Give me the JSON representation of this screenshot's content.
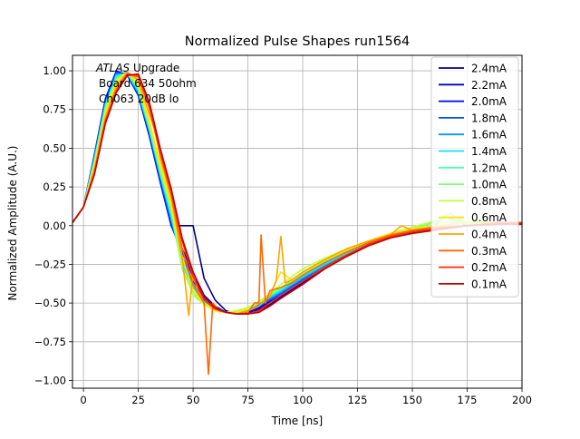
{
  "chart_data": {
    "type": "line",
    "title": "Normalized Pulse Shapes run1564",
    "xlabel": "Time [ns]",
    "ylabel": "Normalized Amplitude (A.U.)",
    "xlim": [
      -5,
      200
    ],
    "ylim": [
      -1.05,
      1.1
    ],
    "xticks": [
      0,
      25,
      50,
      75,
      100,
      125,
      150,
      175,
      200
    ],
    "yticks": [
      -1.0,
      -0.75,
      -0.5,
      -0.25,
      0.0,
      0.25,
      0.5,
      0.75,
      1.0
    ],
    "xtick_labels": [
      "0",
      "25",
      "50",
      "75",
      "100",
      "125",
      "150",
      "175",
      "200"
    ],
    "ytick_labels": [
      "−1.00",
      "−0.75",
      "−0.50",
      "−0.25",
      "0.00",
      "0.25",
      "0.50",
      "0.75",
      "1.00"
    ],
    "grid": true,
    "legend_position": "upper-right",
    "annotation": {
      "line1_italic": "ATLAS",
      "line1_rest": " Upgrade",
      "line2": "Board 634 50ohm",
      "line3": "Ch063 20dB lo"
    },
    "series": [
      {
        "name": "2.4mA",
        "color": "#00007f",
        "x": [
          -5,
          0,
          5,
          10,
          15,
          20,
          25,
          30,
          35,
          38,
          40,
          45,
          50,
          55,
          60,
          65,
          70,
          75,
          80,
          90,
          100,
          110,
          120,
          130,
          140,
          150,
          160,
          175,
          190,
          200
        ],
        "y": [
          0.02,
          0.12,
          0.42,
          0.75,
          0.97,
          0.99,
          0.88,
          0.64,
          0.33,
          0.12,
          0.0,
          0.0,
          0.0,
          -0.34,
          -0.48,
          -0.55,
          -0.57,
          -0.57,
          -0.55,
          -0.47,
          -0.37,
          -0.27,
          -0.18,
          -0.11,
          -0.07,
          -0.04,
          -0.02,
          0.0,
          0.02,
          0.02
        ]
      },
      {
        "name": "2.2mA",
        "color": "#0000c4",
        "x": [
          -5,
          0,
          5,
          10,
          15,
          20,
          25,
          30,
          35,
          40,
          45,
          50,
          55,
          60,
          65,
          70,
          75,
          80,
          90,
          100,
          110,
          120,
          130,
          140,
          150,
          160,
          175,
          190,
          200
        ],
        "y": [
          0.02,
          0.12,
          0.45,
          0.8,
          0.99,
          0.98,
          0.86,
          0.6,
          0.3,
          0.02,
          -0.15,
          -0.3,
          -0.45,
          -0.52,
          -0.56,
          -0.57,
          -0.57,
          -0.54,
          -0.46,
          -0.37,
          -0.27,
          -0.19,
          -0.12,
          -0.07,
          -0.04,
          -0.02,
          0.0,
          0.02,
          0.02
        ]
      },
      {
        "name": "2.0mA",
        "color": "#0000ff",
        "x": [
          -5,
          0,
          5,
          10,
          15,
          20,
          25,
          30,
          35,
          40,
          45,
          50,
          55,
          60,
          65,
          70,
          75,
          80,
          90,
          100,
          110,
          120,
          130,
          140,
          150,
          160,
          175,
          190,
          200
        ],
        "y": [
          0.02,
          0.12,
          0.46,
          0.82,
          1.0,
          0.97,
          0.84,
          0.58,
          0.28,
          0.0,
          -0.17,
          -0.33,
          -0.46,
          -0.53,
          -0.56,
          -0.57,
          -0.56,
          -0.53,
          -0.45,
          -0.36,
          -0.27,
          -0.19,
          -0.12,
          -0.07,
          -0.04,
          -0.02,
          0.0,
          0.02,
          0.02
        ]
      },
      {
        "name": "1.8mA",
        "color": "#0050ff",
        "x": [
          -5,
          0,
          5,
          10,
          15,
          20,
          25,
          30,
          35,
          40,
          45,
          50,
          55,
          60,
          65,
          70,
          75,
          80,
          90,
          100,
          110,
          120,
          130,
          140,
          150,
          160,
          175,
          190,
          200
        ],
        "y": [
          0.02,
          0.12,
          0.45,
          0.8,
          0.99,
          0.97,
          0.85,
          0.6,
          0.3,
          0.02,
          -0.2,
          -0.36,
          -0.47,
          -0.53,
          -0.56,
          -0.56,
          -0.55,
          -0.52,
          -0.44,
          -0.35,
          -0.26,
          -0.18,
          -0.12,
          -0.07,
          -0.04,
          -0.02,
          0.0,
          0.02,
          0.02
        ]
      },
      {
        "name": "1.6mA",
        "color": "#009cff",
        "x": [
          -5,
          0,
          5,
          10,
          15,
          20,
          25,
          30,
          35,
          40,
          45,
          50,
          55,
          60,
          65,
          70,
          75,
          80,
          90,
          100,
          110,
          120,
          130,
          140,
          150,
          160,
          175,
          190,
          200
        ],
        "y": [
          0.02,
          0.12,
          0.44,
          0.79,
          0.98,
          0.98,
          0.86,
          0.61,
          0.32,
          0.04,
          -0.22,
          -0.38,
          -0.48,
          -0.53,
          -0.56,
          -0.56,
          -0.55,
          -0.51,
          -0.43,
          -0.34,
          -0.26,
          -0.18,
          -0.12,
          -0.07,
          -0.04,
          -0.02,
          0.0,
          0.02,
          0.02
        ]
      },
      {
        "name": "1.4mA",
        "color": "#0de5ff",
        "x": [
          -5,
          0,
          5,
          10,
          15,
          20,
          25,
          30,
          35,
          40,
          45,
          50,
          55,
          60,
          65,
          70,
          75,
          80,
          90,
          100,
          110,
          120,
          130,
          140,
          150,
          160,
          165,
          175,
          190,
          200
        ],
        "y": [
          0.02,
          0.12,
          0.43,
          0.78,
          0.97,
          0.98,
          0.87,
          0.62,
          0.33,
          0.06,
          -0.25,
          -0.4,
          -0.49,
          -0.54,
          -0.56,
          -0.56,
          -0.54,
          -0.5,
          -0.42,
          -0.33,
          -0.25,
          -0.18,
          -0.11,
          -0.07,
          -0.03,
          0.0,
          0.06,
          0.0,
          0.02,
          0.02
        ]
      },
      {
        "name": "1.2mA",
        "color": "#4dffa9",
        "x": [
          -5,
          0,
          5,
          10,
          15,
          20,
          25,
          30,
          35,
          40,
          45,
          50,
          55,
          60,
          65,
          70,
          75,
          80,
          90,
          100,
          110,
          120,
          130,
          140,
          150,
          160,
          165,
          175,
          190,
          200
        ],
        "y": [
          0.02,
          0.12,
          0.42,
          0.77,
          0.96,
          0.99,
          0.88,
          0.63,
          0.34,
          0.08,
          -0.27,
          -0.42,
          -0.5,
          -0.54,
          -0.56,
          -0.55,
          -0.53,
          -0.49,
          -0.41,
          -0.32,
          -0.24,
          -0.17,
          -0.11,
          -0.06,
          -0.02,
          0.02,
          0.06,
          0.01,
          0.02,
          0.02
        ]
      },
      {
        "name": "1.0mA",
        "color": "#7dff7a",
        "x": [
          -5,
          0,
          5,
          10,
          15,
          20,
          25,
          30,
          35,
          40,
          45,
          50,
          55,
          60,
          65,
          70,
          75,
          80,
          90,
          100,
          110,
          120,
          130,
          140,
          150,
          160,
          167,
          175,
          190,
          200
        ],
        "y": [
          0.02,
          0.12,
          0.41,
          0.76,
          0.95,
          0.99,
          0.89,
          0.65,
          0.36,
          0.1,
          -0.28,
          -0.44,
          -0.5,
          -0.54,
          -0.56,
          -0.55,
          -0.53,
          -0.49,
          -0.4,
          -0.31,
          -0.23,
          -0.16,
          -0.1,
          -0.06,
          -0.02,
          0.02,
          0.08,
          0.01,
          0.02,
          0.02
        ]
      },
      {
        "name": "0.8mA",
        "color": "#c1ff36",
        "x": [
          -5,
          0,
          5,
          10,
          15,
          20,
          25,
          30,
          35,
          40,
          45,
          50,
          55,
          60,
          65,
          70,
          75,
          80,
          85,
          90,
          100,
          110,
          120,
          130,
          140,
          150,
          160,
          170,
          180,
          190,
          200
        ],
        "y": [
          0.02,
          0.12,
          0.4,
          0.74,
          0.94,
          0.99,
          0.9,
          0.66,
          0.38,
          0.12,
          -0.26,
          -0.45,
          -0.51,
          -0.55,
          -0.56,
          -0.55,
          -0.53,
          -0.49,
          -0.44,
          -0.38,
          -0.28,
          -0.21,
          -0.15,
          -0.1,
          -0.05,
          -0.01,
          0.03,
          0.02,
          0.03,
          0.02,
          0.02
        ]
      },
      {
        "name": "0.6mA",
        "color": "#ffe600",
        "x": [
          -5,
          0,
          5,
          10,
          15,
          20,
          25,
          30,
          35,
          40,
          45,
          50,
          55,
          60,
          65,
          70,
          75,
          80,
          85,
          90,
          95,
          100,
          110,
          120,
          130,
          140,
          150,
          160,
          175,
          190,
          200
        ],
        "y": [
          0.02,
          0.12,
          0.38,
          0.72,
          0.92,
          0.99,
          0.92,
          0.68,
          0.4,
          0.15,
          -0.2,
          -0.42,
          -0.5,
          -0.55,
          -0.56,
          -0.56,
          -0.54,
          -0.5,
          -0.44,
          -0.3,
          -0.35,
          -0.3,
          -0.22,
          -0.16,
          -0.1,
          -0.05,
          -0.02,
          0.0,
          0.02,
          0.02,
          0.02
        ]
      },
      {
        "name": "0.4mA",
        "color": "#ffa400",
        "x": [
          -5,
          0,
          5,
          10,
          15,
          20,
          25,
          30,
          33,
          35,
          40,
          45,
          48,
          50,
          52,
          55,
          60,
          65,
          70,
          75,
          80,
          85,
          88,
          90,
          92,
          95,
          100,
          110,
          120,
          130,
          140,
          145,
          150,
          160,
          175,
          190,
          200
        ],
        "y": [
          0.02,
          0.12,
          0.36,
          0.7,
          0.9,
          0.99,
          0.94,
          0.72,
          0.6,
          0.44,
          0.18,
          -0.2,
          -0.58,
          -0.3,
          -0.42,
          -0.48,
          -0.54,
          -0.56,
          -0.57,
          -0.55,
          -0.52,
          -0.46,
          -0.35,
          -0.07,
          -0.37,
          -0.35,
          -0.3,
          -0.22,
          -0.15,
          -0.1,
          -0.06,
          0.0,
          -0.03,
          -0.02,
          0.0,
          0.02,
          0.02
        ]
      },
      {
        "name": "0.3mA",
        "color": "#ff6800",
        "x": [
          -5,
          0,
          5,
          10,
          15,
          20,
          25,
          30,
          35,
          40,
          45,
          50,
          55,
          57,
          59,
          62,
          65,
          70,
          75,
          78,
          80,
          81,
          83,
          85,
          90,
          95,
          100,
          110,
          120,
          130,
          140,
          150,
          160,
          175,
          190,
          200
        ],
        "y": [
          0.02,
          0.12,
          0.35,
          0.68,
          0.88,
          0.98,
          0.96,
          0.76,
          0.46,
          0.2,
          -0.15,
          -0.38,
          -0.5,
          -0.96,
          -0.5,
          -0.55,
          -0.56,
          -0.57,
          -0.56,
          -0.5,
          -0.5,
          -0.06,
          -0.5,
          -0.42,
          -0.4,
          -0.37,
          -0.32,
          -0.24,
          -0.17,
          -0.11,
          -0.06,
          -0.03,
          -0.01,
          0.0,
          0.02,
          0.02
        ]
      },
      {
        "name": "0.2mA",
        "color": "#ff2d00",
        "x": [
          -5,
          0,
          5,
          10,
          15,
          20,
          25,
          30,
          35,
          40,
          45,
          50,
          55,
          60,
          65,
          70,
          75,
          80,
          85,
          90,
          100,
          110,
          120,
          130,
          140,
          150,
          160,
          175,
          190,
          200
        ],
        "y": [
          0.02,
          0.12,
          0.34,
          0.67,
          0.87,
          0.98,
          0.97,
          0.78,
          0.48,
          0.22,
          -0.1,
          -0.33,
          -0.48,
          -0.54,
          -0.56,
          -0.57,
          -0.57,
          -0.55,
          -0.5,
          -0.45,
          -0.36,
          -0.27,
          -0.19,
          -0.12,
          -0.07,
          -0.04,
          -0.02,
          0.0,
          0.02,
          0.02
        ]
      },
      {
        "name": "0.1mA",
        "color": "#c40000",
        "x": [
          -5,
          0,
          5,
          10,
          15,
          20,
          25,
          30,
          35,
          40,
          45,
          50,
          55,
          60,
          65,
          70,
          75,
          80,
          85,
          90,
          100,
          110,
          120,
          130,
          140,
          150,
          160,
          175,
          190,
          200
        ],
        "y": [
          0.02,
          0.12,
          0.33,
          0.66,
          0.86,
          0.97,
          0.98,
          0.8,
          0.5,
          0.24,
          -0.08,
          -0.3,
          -0.46,
          -0.53,
          -0.56,
          -0.57,
          -0.57,
          -0.56,
          -0.52,
          -0.47,
          -0.38,
          -0.28,
          -0.2,
          -0.13,
          -0.08,
          -0.05,
          -0.03,
          0.0,
          0.01,
          0.01
        ]
      }
    ]
  }
}
